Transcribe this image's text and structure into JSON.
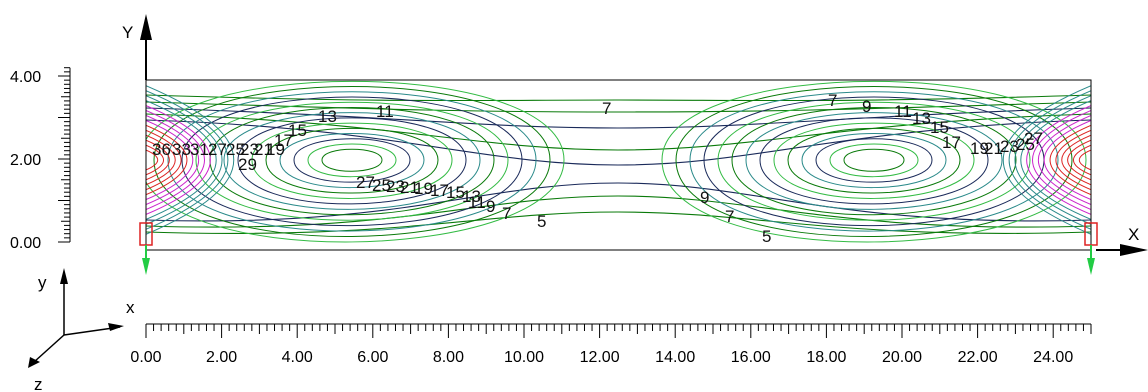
{
  "axes": {
    "global_x_label": "X",
    "global_y_label": "Y",
    "local_x_label": "x",
    "local_y_label": "y",
    "local_z_label": "z",
    "x_ticks": [
      "0.00",
      "2.00",
      "4.00",
      "6.00",
      "8.00",
      "10.00",
      "12.00",
      "14.00",
      "16.00",
      "18.00",
      "20.00",
      "22.00",
      "24.00"
    ],
    "y_ticks": [
      "0.00",
      "2.00",
      "4.00"
    ]
  },
  "contour_labels": [
    "36",
    "33",
    "31",
    "27",
    "25",
    "23",
    "21",
    "19",
    "17",
    "15",
    "13",
    "11",
    "7",
    "29",
    "27",
    "25",
    "23",
    "21",
    "19",
    "17",
    "15",
    "13",
    "11",
    "9",
    "7",
    "5",
    "7",
    "9",
    "11",
    "13",
    "15",
    "17",
    "19",
    "21",
    "23",
    "25",
    "27",
    "9",
    "7",
    "5"
  ],
  "colors": {
    "frame": "#000000",
    "contour_green": "#0a7a0a",
    "contour_lightgreen": "#33bb44",
    "contour_navy": "#1a2a5a",
    "contour_teal": "#2a8a8a",
    "contour_magenta": "#cc22cc",
    "contour_red": "#dd2222",
    "support": "#22cc44"
  }
}
